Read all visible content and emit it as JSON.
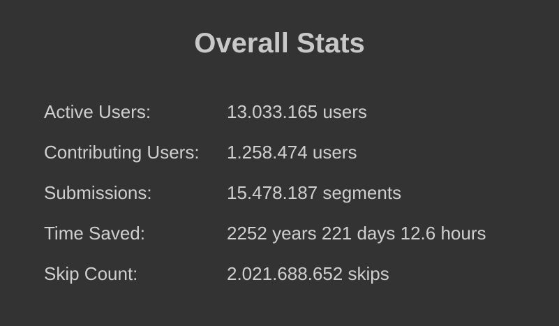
{
  "header": {
    "title": "Overall Stats"
  },
  "table": {
    "rows": [
      [
        "Active Users:",
        "13.033.165 users"
      ],
      [
        "Contributing Users:",
        "1.258.474 users"
      ],
      [
        "Submissions:",
        "15.478.187 segments"
      ],
      [
        "Time Saved:",
        "2252 years 221 days 12.6 hours"
      ],
      [
        "Skip Count:",
        "2.021.688.652 skips"
      ]
    ]
  }
}
